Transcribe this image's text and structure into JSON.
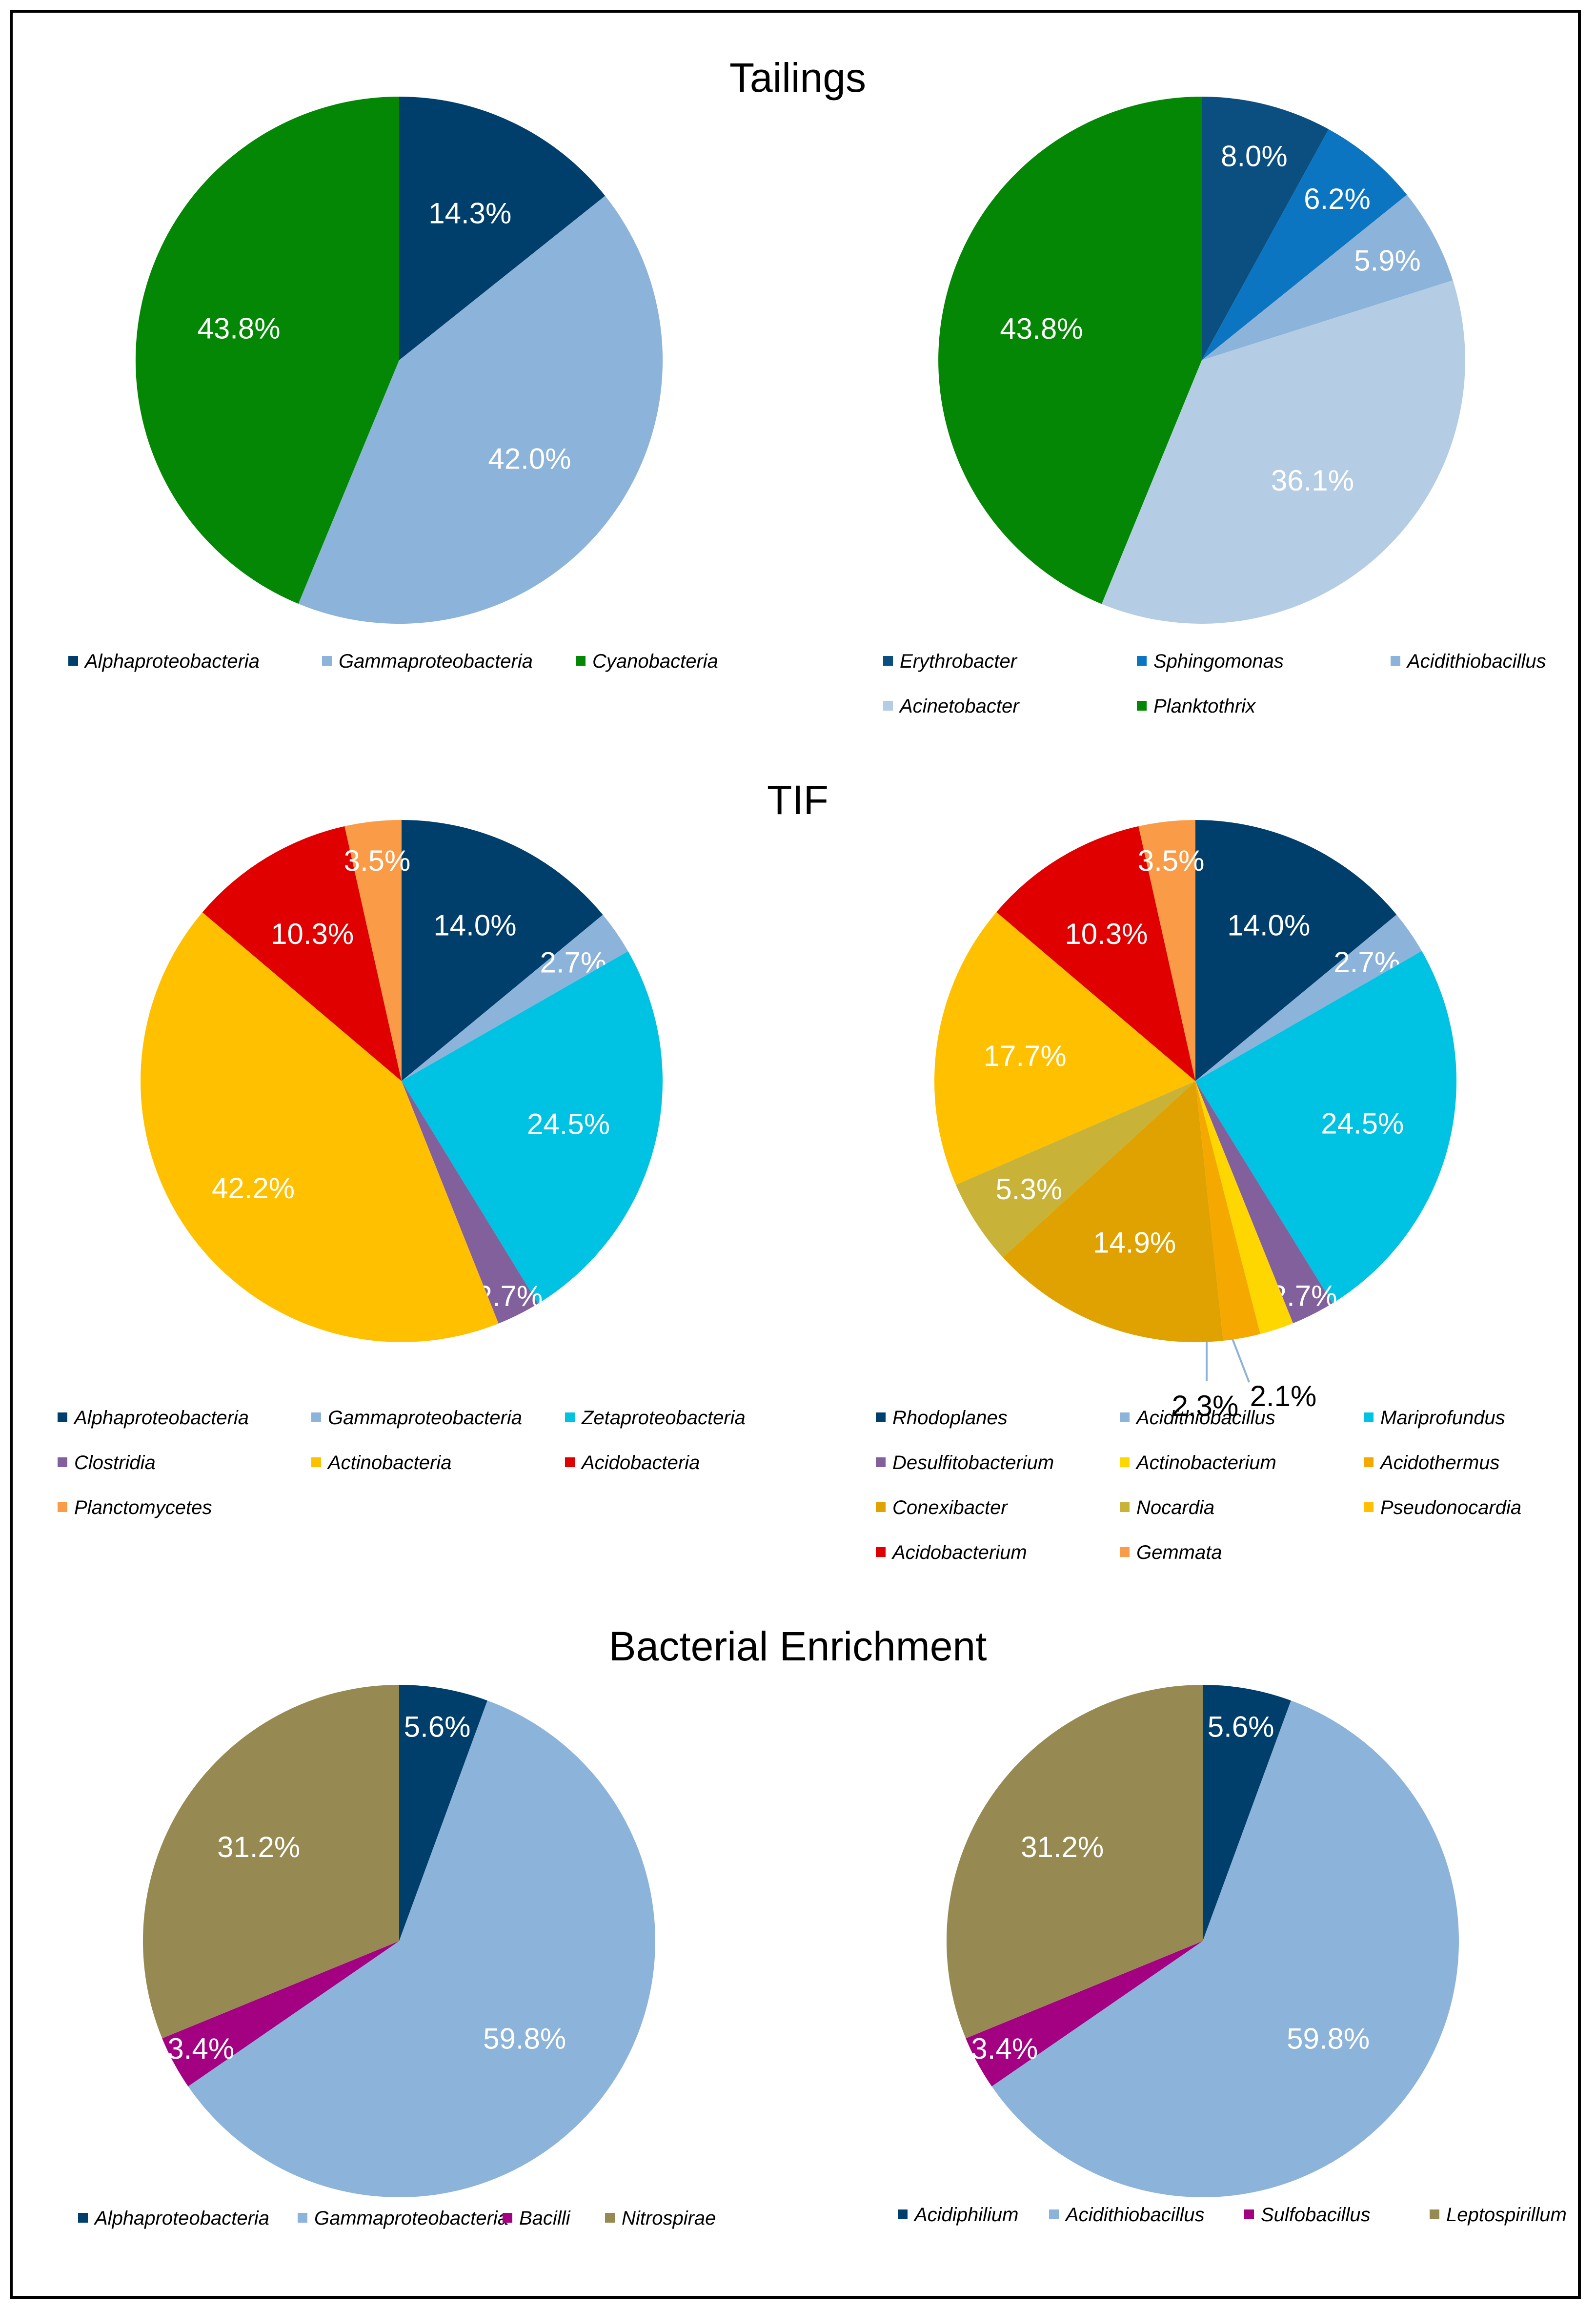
{
  "sections": [
    {
      "title": "Tailings"
    },
    {
      "title": "TIF"
    },
    {
      "title": "Bacterial Enrichment"
    }
  ],
  "chart_data": [
    {
      "type": "pie",
      "section": "Tailings",
      "level": "class",
      "slices": [
        {
          "label": "Alphaproteobacteria",
          "value": 14.3,
          "display": "14.3%",
          "color": "#003f6b"
        },
        {
          "label": "Gammaproteobacteria",
          "value": 42.0,
          "display": "42.0%",
          "color": "#8cb3d9"
        },
        {
          "label": "Cyanobacteria",
          "value": 43.8,
          "display": "43.8%",
          "color": "#048704"
        }
      ]
    },
    {
      "type": "pie",
      "section": "Tailings",
      "level": "genus",
      "slices": [
        {
          "label": "Erythrobacter",
          "value": 8.0,
          "display": "8.0%",
          "color": "#0b4f80"
        },
        {
          "label": "Sphingomonas",
          "value": 6.2,
          "display": "6.2%",
          "color": "#0b75c2"
        },
        {
          "label": "Acidithiobacillus",
          "value": 5.9,
          "display": "5.9%",
          "color": "#8cb3d9"
        },
        {
          "label": "Acinetobacter",
          "value": 36.1,
          "display": "36.1%",
          "color": "#b4cde4"
        },
        {
          "label": "Planktothrix",
          "value": 43.8,
          "display": "43.8%",
          "color": "#048704"
        }
      ]
    },
    {
      "type": "pie",
      "section": "TIF",
      "level": "class",
      "slices": [
        {
          "label": "Alphaproteobacteria",
          "value": 14.0,
          "display": "14.0%",
          "color": "#003f6b"
        },
        {
          "label": "Gammaproteobacteria",
          "value": 2.7,
          "display": "2.7%",
          "color": "#8cb3d9"
        },
        {
          "label": "Zetaproteobacteria",
          "value": 24.5,
          "display": "24.5%",
          "color": "#00c2e3"
        },
        {
          "label": "Clostridia",
          "value": 2.7,
          "display": "2.7%",
          "color": "#82609b"
        },
        {
          "label": "Actinobacteria",
          "value": 42.2,
          "display": "42.2%",
          "color": "#ffc000"
        },
        {
          "label": "Acidobacteria",
          "value": 10.3,
          "display": "10.3%",
          "color": "#e00000"
        },
        {
          "label": "Planctomycetes",
          "value": 3.5,
          "display": "3.5%",
          "color": "#fa9b47"
        }
      ]
    },
    {
      "type": "pie",
      "section": "TIF",
      "level": "genus",
      "slices": [
        {
          "label": "Rhodoplanes",
          "value": 14.0,
          "display": "14.0%",
          "color": "#003f6b"
        },
        {
          "label": "Acidithiobacillus",
          "value": 2.7,
          "display": "2.7%",
          "color": "#8cb3d9"
        },
        {
          "label": "Mariprofundus",
          "value": 24.5,
          "display": "24.5%",
          "color": "#00c2e3"
        },
        {
          "label": "Desulfitobacterium",
          "value": 2.7,
          "display": "2.7%",
          "color": "#82609b"
        },
        {
          "label": "Actinobacterium",
          "value": 2.1,
          "display": "2.1%",
          "color": "#ffd700"
        },
        {
          "label": "Acidothermus",
          "value": 2.3,
          "display": "2.3%",
          "color": "#f5a800"
        },
        {
          "label": "Conexibacter",
          "value": 14.9,
          "display": "14.9%",
          "color": "#e0a200"
        },
        {
          "label": "Nocardia",
          "value": 5.3,
          "display": "5.3%",
          "color": "#c9b238"
        },
        {
          "label": "Pseudonocardia",
          "value": 17.7,
          "display": "17.7%",
          "color": "#ffc000"
        },
        {
          "label": "Acidobacterium",
          "value": 10.3,
          "display": "10.3%",
          "color": "#e00000"
        },
        {
          "label": "Gemmata",
          "value": 3.5,
          "display": "3.5%",
          "color": "#fa9b47"
        }
      ]
    },
    {
      "type": "pie",
      "section": "Bacterial Enrichment",
      "level": "class",
      "slices": [
        {
          "label": "Alphaproteobacteria",
          "value": 5.6,
          "display": "5.6%",
          "color": "#003f6b"
        },
        {
          "label": "Gammaproteobacteria",
          "value": 59.8,
          "display": "59.8%",
          "color": "#8cb3d9"
        },
        {
          "label": "Bacilli",
          "value": 3.4,
          "display": "3.4%",
          "color": "#a30082"
        },
        {
          "label": "Nitrospirae",
          "value": 31.2,
          "display": "31.2%",
          "color": "#968a52"
        }
      ]
    },
    {
      "type": "pie",
      "section": "Bacterial Enrichment",
      "level": "genus",
      "slices": [
        {
          "label": "Acidiphilium",
          "value": 5.6,
          "display": "5.6%",
          "color": "#003f6b"
        },
        {
          "label": "Acidithiobacillus",
          "value": 59.8,
          "display": "59.8%",
          "color": "#8cb3d9"
        },
        {
          "label": "Sulfobacillus",
          "value": 3.4,
          "display": "3.4%",
          "color": "#a30082"
        },
        {
          "label": "Leptospirillum",
          "value": 31.2,
          "display": "31.2%",
          "color": "#968a52"
        }
      ]
    }
  ]
}
